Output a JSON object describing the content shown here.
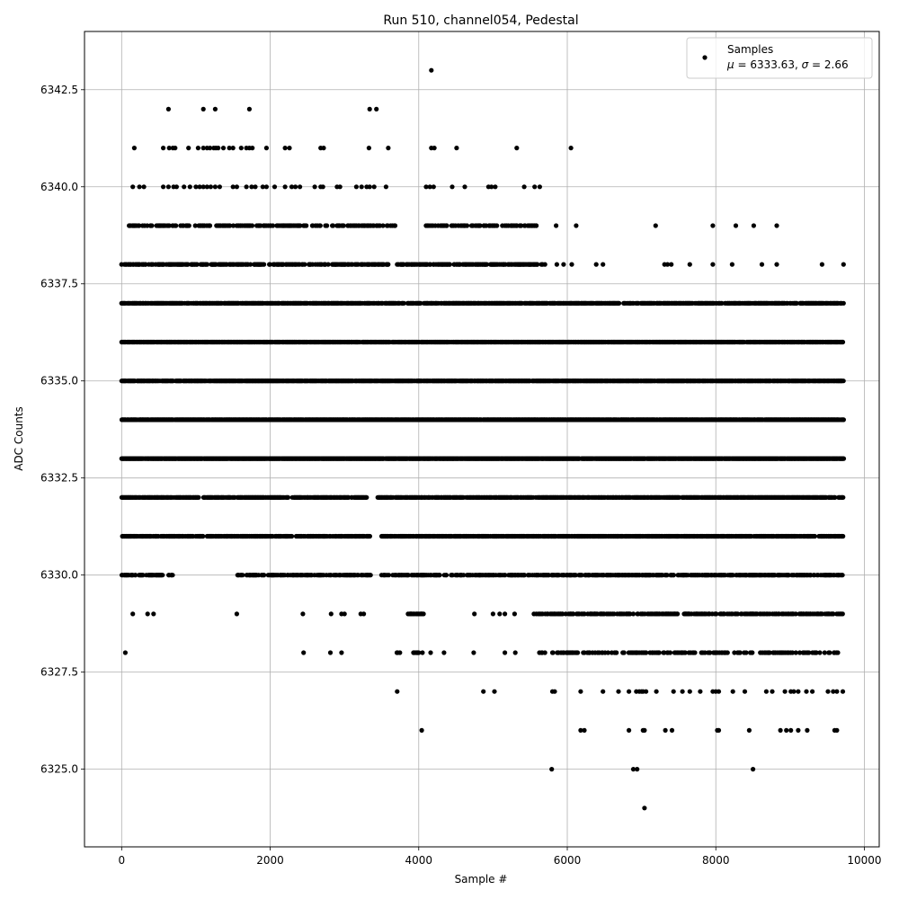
{
  "chart_data": {
    "type": "scatter",
    "title": "Run 510, channel054, Pedestal",
    "xlabel": "Sample #",
    "ylabel": "ADC Counts",
    "xlim": [
      -500,
      10200
    ],
    "ylim": [
      6323.0,
      6344.0
    ],
    "xticks": [
      0,
      2000,
      4000,
      6000,
      8000,
      10000
    ],
    "xtick_labels": [
      "0",
      "2000",
      "4000",
      "6000",
      "8000",
      "10000"
    ],
    "yticks": [
      6325.0,
      6327.5,
      6330.0,
      6332.5,
      6335.0,
      6337.5,
      6340.0,
      6342.5
    ],
    "ytick_labels": [
      "6325.0",
      "6327.5",
      "6330.0",
      "6332.5",
      "6335.0",
      "6337.5",
      "6340.0",
      "6342.5"
    ],
    "grid": true,
    "legend": {
      "placement": "top-right",
      "label": "Samples",
      "stats_mu": "6333.63",
      "stats_sigma": "2.66"
    },
    "marker_color": "#000000",
    "series": [
      {
        "name": "Samples",
        "mean": 6333.63,
        "std": 2.66,
        "n": 9720,
        "x_range": [
          0,
          9720
        ],
        "levels": [
          {
            "y": 6324,
            "x": [
              7040
            ]
          },
          {
            "y": 6325,
            "x": [
              5790,
              6890,
              6940,
              8500
            ]
          },
          {
            "y": 6326,
            "x": [
              4040,
              6180,
              6230,
              6830,
              7020,
              7040,
              7320,
              7410,
              8020,
              8040,
              8450,
              8870,
              8950,
              9010,
              9110,
              9230,
              9600,
              9630
            ]
          },
          {
            "y": 6327,
            "x": [
              3710,
              4870,
              5020,
              5800,
              5830,
              6180,
              6480,
              6690,
              6830,
              6930,
              6970,
              7000,
              7020,
              7060,
              7200,
              7430,
              7550,
              7650,
              7790,
              7960,
              8000,
              8040,
              8230,
              8390,
              8680,
              8760,
              8930,
              9010,
              9050,
              9110,
              9220,
              9300,
              9510,
              9580,
              9630,
              9710
            ]
          },
          {
            "y": 6328,
            "x_ranges": [
              [
                3700,
                3760
              ],
              [
                3900,
                4000
              ],
              [
                5600,
                5700
              ],
              [
                5800,
                9650
              ]
            ],
            "x": [
              50,
              2450,
              2810,
              2960,
              4050,
              4160,
              4340,
              4740,
              5160,
              5300
            ],
            "density": 0.35
          },
          {
            "y": 6329,
            "x_ranges": [
              [
                3850,
                4100
              ],
              [
                5550,
                9720
              ]
            ],
            "x": [
              150,
              350,
              430,
              1550,
              2440,
              2820,
              2960,
              3000,
              3220,
              3260,
              4750,
              5000,
              5090,
              5160,
              5290
            ],
            "density": 0.5
          },
          {
            "y": 6330,
            "x_ranges": [
              [
                0,
                700
              ],
              [
                1550,
                3350
              ],
              [
                3500,
                5600
              ],
              [
                5600,
                9720
              ]
            ],
            "density": 0.6
          },
          {
            "y": 6331,
            "x_ranges": [
              [
                0,
                1100
              ],
              [
                1150,
                2300
              ],
              [
                2350,
                3350
              ],
              [
                3500,
                9720
              ]
            ],
            "density": 0.75
          },
          {
            "y": 6332,
            "x_ranges": [
              [
                0,
                1050
              ],
              [
                1100,
                2250
              ],
              [
                2300,
                3300
              ],
              [
                3450,
                9720
              ]
            ],
            "density": 0.85
          },
          {
            "y": 6333,
            "x_ranges": [
              [
                0,
                9720
              ]
            ],
            "density": 0.95
          },
          {
            "y": 6334,
            "x_ranges": [
              [
                0,
                9720
              ]
            ],
            "density": 0.95
          },
          {
            "y": 6335,
            "x_ranges": [
              [
                0,
                9720
              ]
            ],
            "density": 0.9
          },
          {
            "y": 6336,
            "x_ranges": [
              [
                0,
                9720
              ]
            ],
            "density": 0.85
          },
          {
            "y": 6337,
            "x_ranges": [
              [
                0,
                6700
              ],
              [
                6750,
                9720
              ]
            ],
            "density": 0.75
          },
          {
            "y": 6338,
            "x_ranges": [
              [
                0,
                3600
              ],
              [
                3700,
                5700
              ]
            ],
            "x": [
              5860,
              5950,
              6060,
              6390,
              6480,
              7310,
              7350,
              7400,
              7650,
              7960,
              8220,
              8620,
              8820,
              9430,
              9720
            ],
            "density": 0.6
          },
          {
            "y": 6339,
            "x_ranges": [
              [
                100,
                3700
              ],
              [
                4100,
                5600
              ]
            ],
            "x": [
              5850,
              6120,
              7190,
              7960,
              8270,
              8510,
              8820
            ],
            "density": 0.45
          },
          {
            "y": 6340,
            "x": [
              150,
              240,
              300,
              560,
              630,
              700,
              740,
              840,
              920,
              1000,
              1050,
              1100,
              1150,
              1200,
              1260,
              1320,
              1500,
              1550,
              1680,
              1750,
              1800,
              1900,
              1950,
              2060,
              2200,
              2290,
              2340,
              2400,
              2600,
              2680,
              2710,
              2900,
              2940,
              3160,
              3230,
              3300,
              3340,
              3400,
              3560,
              4100,
              4150,
              4200,
              4450,
              4620,
              4940,
              4980,
              5030,
              5420,
              5560,
              5630
            ]
          },
          {
            "y": 6341,
            "x": [
              170,
              560,
              640,
              690,
              720,
              900,
              1030,
              1100,
              1150,
              1190,
              1240,
              1270,
              1300,
              1370,
              1450,
              1500,
              1610,
              1680,
              1720,
              1760,
              1950,
              2200,
              2260,
              2680,
              2720,
              3330,
              3590,
              4170,
              4210,
              4510,
              5320,
              6050
            ]
          },
          {
            "y": 6342,
            "x": [
              630,
              1100,
              1260,
              1720,
              3340,
              3430
            ]
          },
          {
            "y": 6343,
            "x": [
              4170
            ]
          }
        ]
      }
    ]
  }
}
